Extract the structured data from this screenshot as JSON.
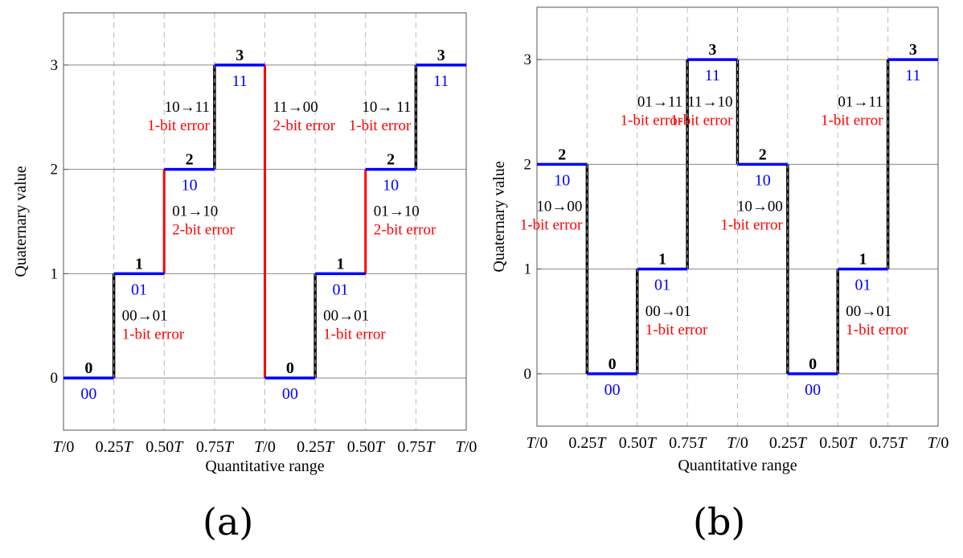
{
  "captions": {
    "a": "(a)",
    "b": "(b)"
  },
  "colors": {
    "level_line": "#0000ff",
    "code_text": "#0000ff",
    "error_text": "#ff0000",
    "transition_2bit": "#ff0000",
    "transition_1bit": "#000000",
    "grid_dashed": "#bbbbbb",
    "grid_solid": "#888888"
  },
  "chart_data": [
    {
      "panel": "a",
      "type": "line",
      "step": true,
      "xlabel": "Quantitative range",
      "ylabel": "Quaternary value",
      "x": [
        0,
        0.25,
        0.5,
        0.75,
        1,
        1.25,
        1.5,
        1.75,
        2
      ],
      "x_tick_labels": [
        "T/0",
        "0.25T",
        "0.50T",
        "0.75T",
        "T/0",
        "0.25T",
        "0.50T",
        "0.75T",
        "T/0"
      ],
      "ylim": [
        -0.5,
        3.5
      ],
      "yticks": [
        0,
        1,
        2,
        3
      ],
      "y_tick_labels": [
        "0",
        "1",
        "2",
        "3"
      ],
      "vertical_dashed_grid": true,
      "horizontal_grid": true,
      "levels": [
        {
          "x0": 0,
          "x1": 0.25,
          "value": 0,
          "value_label": "0",
          "code": "00"
        },
        {
          "x0": 0.25,
          "x1": 0.5,
          "value": 1,
          "value_label": "1",
          "code": "01"
        },
        {
          "x0": 0.5,
          "x1": 0.75,
          "value": 2,
          "value_label": "2",
          "code": "10"
        },
        {
          "x0": 0.75,
          "x1": 1,
          "value": 3,
          "value_label": "3",
          "code": "11"
        },
        {
          "x0": 1,
          "x1": 1.25,
          "value": 0,
          "value_label": "0",
          "code": "00"
        },
        {
          "x0": 1.25,
          "x1": 1.5,
          "value": 1,
          "value_label": "1",
          "code": "01"
        },
        {
          "x0": 1.5,
          "x1": 1.75,
          "value": 2,
          "value_label": "2",
          "code": "10"
        },
        {
          "x0": 1.75,
          "x1": 2,
          "value": 3,
          "value_label": "3",
          "code": "11"
        }
      ],
      "transitions": [
        {
          "x": 0.25,
          "from": 0,
          "to": 1,
          "code_change": "00→01",
          "error": "1-bit error",
          "bits": 1
        },
        {
          "x": 0.5,
          "from": 1,
          "to": 2,
          "code_change": "01→10",
          "error": "2-bit error",
          "bits": 2
        },
        {
          "x": 0.75,
          "from": 2,
          "to": 3,
          "code_change": "10→11",
          "error": "1-bit error",
          "bits": 1
        },
        {
          "x": 1,
          "from": 3,
          "to": 0,
          "code_change": "11→00",
          "error": "2-bit error",
          "bits": 2
        },
        {
          "x": 1.25,
          "from": 0,
          "to": 1,
          "code_change": "00→01",
          "error": "1-bit error",
          "bits": 1
        },
        {
          "x": 1.5,
          "from": 1,
          "to": 2,
          "code_change": "01→10",
          "error": "2-bit error",
          "bits": 2
        },
        {
          "x": 1.75,
          "from": 2,
          "to": 3,
          "code_change": "10→ 11",
          "error": "1-bit error",
          "bits": 1
        }
      ]
    },
    {
      "panel": "b",
      "type": "line",
      "step": true,
      "xlabel": "Quantitative range",
      "ylabel": "Quaternary value",
      "x": [
        0,
        0.25,
        0.5,
        0.75,
        1,
        1.25,
        1.5,
        1.75,
        2
      ],
      "x_tick_labels": [
        "T/0",
        "0.25T",
        "0.50T",
        "0.75T",
        "T/0",
        "0.25T",
        "0.50T",
        "0.75T",
        "T/0"
      ],
      "ylim": [
        -0.5,
        3.5
      ],
      "yticks": [
        0,
        1,
        2,
        3
      ],
      "y_tick_labels": [
        "0",
        "1",
        "2",
        "3"
      ],
      "vertical_dashed_grid": true,
      "horizontal_grid": true,
      "levels": [
        {
          "x0": 0,
          "x1": 0.25,
          "value": 2,
          "value_label": "2",
          "code": "10"
        },
        {
          "x0": 0.25,
          "x1": 0.5,
          "value": 0,
          "value_label": "0",
          "code": "00"
        },
        {
          "x0": 0.5,
          "x1": 0.75,
          "value": 1,
          "value_label": "1",
          "code": "01"
        },
        {
          "x0": 0.75,
          "x1": 1,
          "value": 3,
          "value_label": "3",
          "code": "11"
        },
        {
          "x0": 1,
          "x1": 1.25,
          "value": 2,
          "value_label": "2",
          "code": "10"
        },
        {
          "x0": 1.25,
          "x1": 1.5,
          "value": 0,
          "value_label": "0",
          "code": "00"
        },
        {
          "x0": 1.5,
          "x1": 1.75,
          "value": 1,
          "value_label": "1",
          "code": "01"
        },
        {
          "x0": 1.75,
          "x1": 2,
          "value": 3,
          "value_label": "3",
          "code": "11"
        }
      ],
      "transitions": [
        {
          "x": 0.25,
          "from": 2,
          "to": 0,
          "code_change": "10→00",
          "error": "1-bit error",
          "bits": 1
        },
        {
          "x": 0.5,
          "from": 0,
          "to": 1,
          "code_change": "00→01",
          "error": "1-bit error",
          "bits": 1
        },
        {
          "x": 0.75,
          "from": 1,
          "to": 3,
          "code_change": "01→11",
          "error": "1-bit error",
          "bits": 1
        },
        {
          "x": 1,
          "from": 3,
          "to": 2,
          "code_change": "11→10",
          "error": "1-bit error",
          "bits": 1
        },
        {
          "x": 1.25,
          "from": 2,
          "to": 0,
          "code_change": "10→00",
          "error": "1-bit error",
          "bits": 1
        },
        {
          "x": 1.5,
          "from": 0,
          "to": 1,
          "code_change": "00→01",
          "error": "1-bit error",
          "bits": 1
        },
        {
          "x": 1.75,
          "from": 1,
          "to": 3,
          "code_change": "01→11",
          "error": "1-bit error",
          "bits": 1
        }
      ]
    }
  ]
}
